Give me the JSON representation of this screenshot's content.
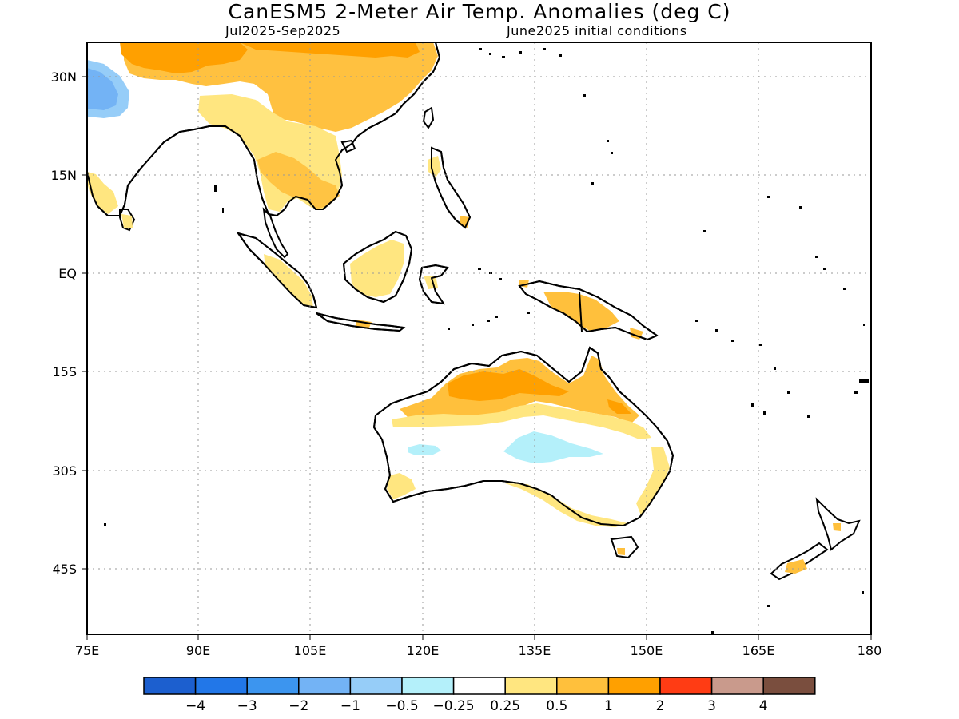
{
  "title": "CanESM5 2-Meter Air Temp. Anomalies (deg C)",
  "period": "Jul2025-Sep2025",
  "initial_conditions": "June2025 initial conditions",
  "axes": {
    "lon_ticks": [
      "75E",
      "90E",
      "105E",
      "120E",
      "135E",
      "150E",
      "165E",
      "180"
    ],
    "lat_ticks": [
      "30N",
      "15N",
      "EQ",
      "15S",
      "30S",
      "45S"
    ]
  },
  "colorbar": {
    "colors": [
      "#1c5fcf",
      "#2277e8",
      "#3c95ef",
      "#73b3f5",
      "#96cdf8",
      "#b4f0fa",
      "#ffffff",
      "#ffe680",
      "#ffc03c",
      "#ffa000",
      "#ff3c14",
      "#c99a8c",
      "#7a4e3e"
    ],
    "labels": [
      "-4",
      "-3",
      "-2",
      "-1",
      "-0.5",
      "-0.25",
      "0.25",
      "0.5",
      "1",
      "2",
      "3",
      "4"
    ]
  },
  "legend": {
    "categories": [
      "< -4",
      "-4 to -3",
      "-3 to -2",
      "-2 to -1",
      "-1 to -0.5",
      "-0.5 to -0.25",
      "-0.25 to 0.25",
      "0.25 to 0.5",
      "0.5 to 1",
      "1 to 2",
      "2 to 3",
      "3 to 4",
      "> 4"
    ]
  }
}
